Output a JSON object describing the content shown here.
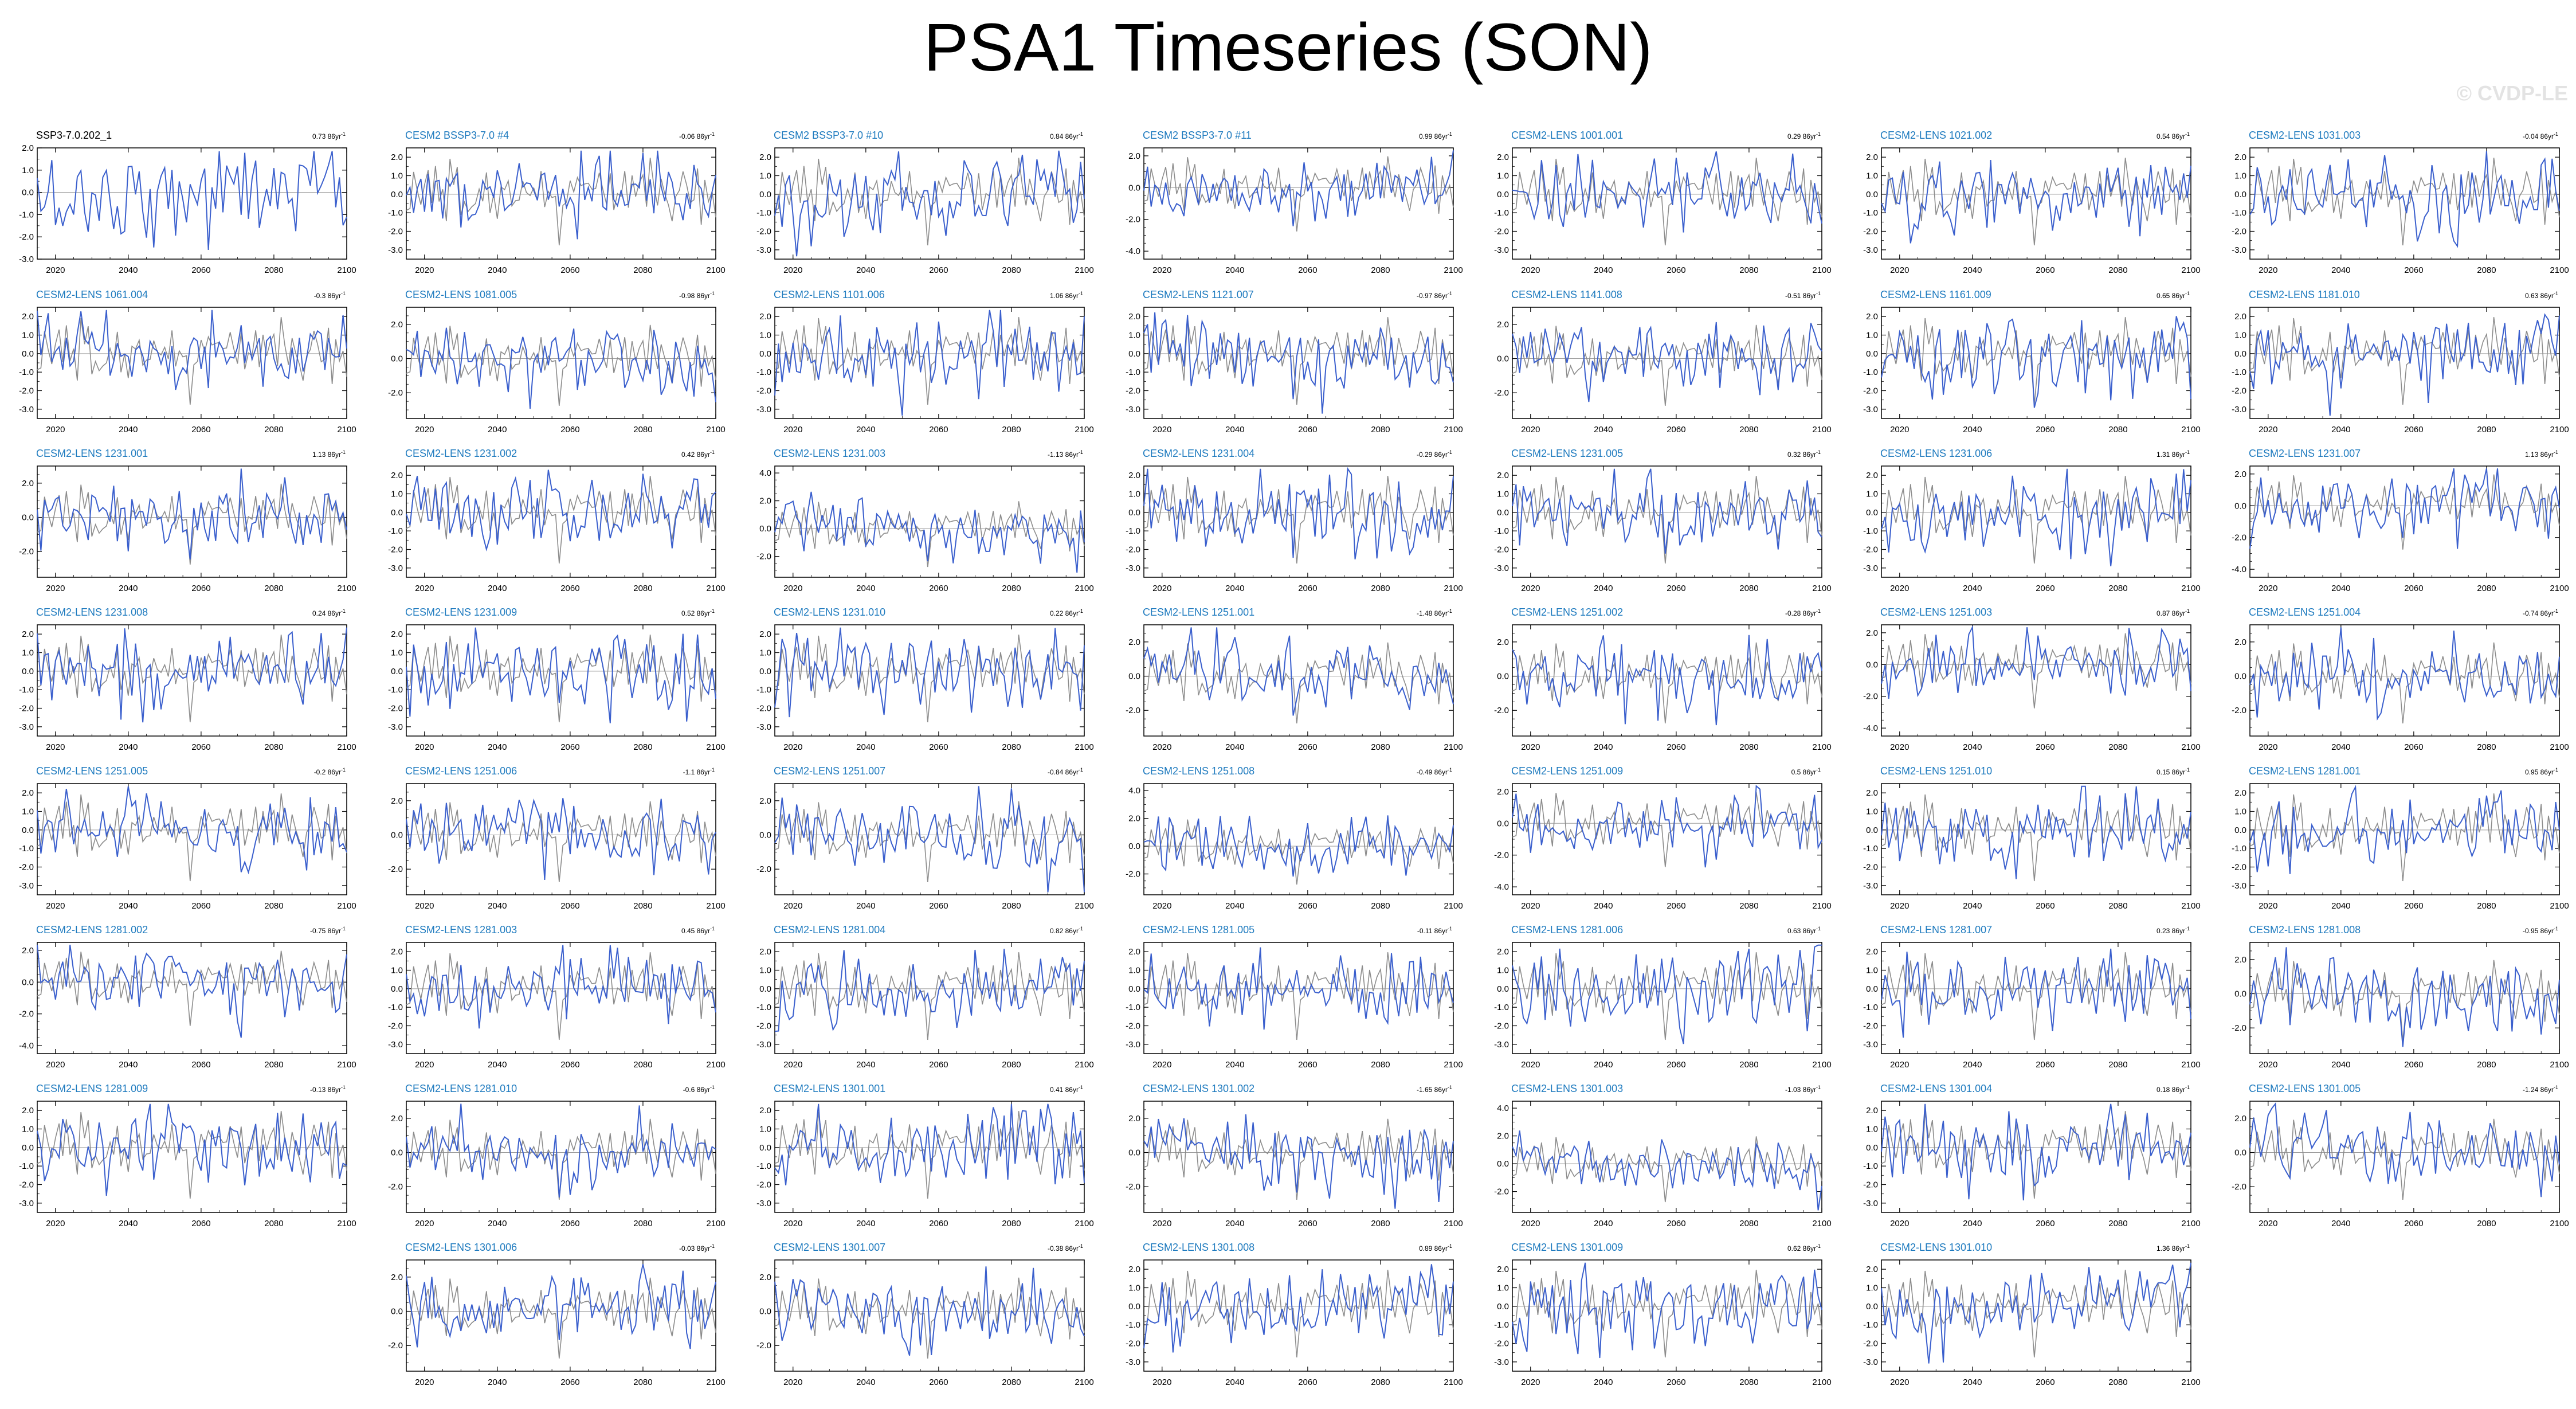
{
  "title": "PSA1 Timeseries (SON)",
  "watermark": "© CVDP-LE",
  "colors": {
    "member_line": "#3a5fcd",
    "obs_line": "#8c8c8c",
    "member_title": "#1f7bbf",
    "obs_title": "#000000",
    "zero_line": "#9a9a9a"
  },
  "chart_data": {
    "type": "line",
    "x_range": [
      2015,
      2100
    ],
    "x_ticks": [
      2020,
      2040,
      2060,
      2080,
      2100
    ],
    "trend_unit": "86yr",
    "trend_unit_exp": "-1",
    "series_note": "Each panel: ensemble member (blue) with observational reference (gray), standardized PSA1 index",
    "panels": [
      {
        "name": "SSP3-7.0.202_1",
        "trend": "0.73",
        "row": 0,
        "col": 0,
        "obs": true,
        "ylim": [
          -3.0,
          2.0
        ],
        "yticks": [
          -3.0,
          -2.0,
          -1.0,
          0.0,
          1.0,
          2.0
        ]
      },
      {
        "name": "CESM2 BSSP3-7.0 #4",
        "trend": "-0.06",
        "row": 0,
        "col": 1,
        "ylim": [
          -3.5,
          2.5
        ],
        "yticks": [
          -3.0,
          -2.0,
          -1.0,
          0.0,
          1.0,
          2.0
        ]
      },
      {
        "name": "CESM2 BSSP3-7.0 #10",
        "trend": "0.84",
        "row": 0,
        "col": 2,
        "ylim": [
          -3.5,
          2.5
        ],
        "yticks": [
          -3.0,
          -2.0,
          -1.0,
          0.0,
          1.0,
          2.0
        ]
      },
      {
        "name": "CESM2 BSSP3-7.0 #11",
        "trend": "0.99",
        "row": 0,
        "col": 3,
        "ylim": [
          -4.5,
          2.5
        ],
        "yticks": [
          -4.0,
          -2.0,
          0.0,
          2.0
        ]
      },
      {
        "name": "CESM2-LENS 1001.001",
        "trend": "0.29",
        "row": 0,
        "col": 4,
        "ylim": [
          -3.5,
          2.5
        ],
        "yticks": [
          -3.0,
          -2.0,
          -1.0,
          0.0,
          1.0,
          2.0
        ]
      },
      {
        "name": "CESM2-LENS 1021.002",
        "trend": "0.54",
        "row": 0,
        "col": 5,
        "ylim": [
          -3.5,
          2.5
        ],
        "yticks": [
          -3.0,
          -2.0,
          -1.0,
          0.0,
          1.0,
          2.0
        ]
      },
      {
        "name": "CESM2-LENS 1031.003",
        "trend": "-0.04",
        "row": 0,
        "col": 6,
        "ylim": [
          -3.5,
          2.5
        ],
        "yticks": [
          -3.0,
          -2.0,
          -1.0,
          0.0,
          1.0,
          2.0
        ]
      },
      {
        "name": "CESM2-LENS 1061.004",
        "trend": "-0.3",
        "row": 1,
        "col": 0,
        "ylim": [
          -3.5,
          2.5
        ],
        "yticks": [
          -3.0,
          -2.0,
          -1.0,
          0.0,
          1.0,
          2.0
        ]
      },
      {
        "name": "CESM2-LENS 1081.005",
        "trend": "-0.98",
        "row": 1,
        "col": 1,
        "ylim": [
          -3.5,
          3.0
        ],
        "yticks": [
          -2.0,
          0.0,
          2.0
        ]
      },
      {
        "name": "CESM2-LENS 1101.006",
        "trend": "1.06",
        "row": 1,
        "col": 2,
        "ylim": [
          -3.5,
          2.5
        ],
        "yticks": [
          -3.0,
          -2.0,
          -1.0,
          0.0,
          1.0,
          2.0
        ]
      },
      {
        "name": "CESM2-LENS 1121.007",
        "trend": "-0.97",
        "row": 1,
        "col": 3,
        "ylim": [
          -3.5,
          2.5
        ],
        "yticks": [
          -3.0,
          -2.0,
          -1.0,
          0.0,
          1.0,
          2.0
        ]
      },
      {
        "name": "CESM2-LENS 1141.008",
        "trend": "-0.51",
        "row": 1,
        "col": 4,
        "ylim": [
          -3.5,
          3.0
        ],
        "yticks": [
          -2.0,
          0.0,
          2.0
        ]
      },
      {
        "name": "CESM2-LENS 1161.009",
        "trend": "0.65",
        "row": 1,
        "col": 5,
        "ylim": [
          -3.5,
          2.5
        ],
        "yticks": [
          -3.0,
          -2.0,
          -1.0,
          0.0,
          1.0,
          2.0
        ]
      },
      {
        "name": "CESM2-LENS 1181.010",
        "trend": "0.63",
        "row": 1,
        "col": 6,
        "ylim": [
          -3.5,
          2.5
        ],
        "yticks": [
          -3.0,
          -2.0,
          -1.0,
          0.0,
          1.0,
          2.0
        ]
      },
      {
        "name": "CESM2-LENS 1231.001",
        "trend": "1.13",
        "row": 2,
        "col": 0,
        "ylim": [
          -3.5,
          3.0
        ],
        "yticks": [
          -2.0,
          0.0,
          2.0
        ]
      },
      {
        "name": "CESM2-LENS 1231.002",
        "trend": "0.42",
        "row": 2,
        "col": 1,
        "ylim": [
          -3.5,
          2.5
        ],
        "yticks": [
          -3.0,
          -2.0,
          -1.0,
          0.0,
          1.0,
          2.0
        ]
      },
      {
        "name": "CESM2-LENS 1231.003",
        "trend": "-1.13",
        "row": 2,
        "col": 2,
        "ylim": [
          -3.5,
          4.5
        ],
        "yticks": [
          -2.0,
          0.0,
          2.0,
          4.0
        ]
      },
      {
        "name": "CESM2-LENS 1231.004",
        "trend": "-0.29",
        "row": 2,
        "col": 3,
        "ylim": [
          -3.5,
          2.5
        ],
        "yticks": [
          -3.0,
          -2.0,
          -1.0,
          0.0,
          1.0,
          2.0
        ]
      },
      {
        "name": "CESM2-LENS 1231.005",
        "trend": "0.32",
        "row": 2,
        "col": 4,
        "ylim": [
          -3.5,
          2.5
        ],
        "yticks": [
          -3.0,
          -2.0,
          -1.0,
          0.0,
          1.0,
          2.0
        ]
      },
      {
        "name": "CESM2-LENS 1231.006",
        "trend": "1.31",
        "row": 2,
        "col": 5,
        "ylim": [
          -3.5,
          2.5
        ],
        "yticks": [
          -3.0,
          -2.0,
          -1.0,
          0.0,
          1.0,
          2.0
        ]
      },
      {
        "name": "CESM2-LENS 1231.007",
        "trend": "1.13",
        "row": 2,
        "col": 6,
        "ylim": [
          -4.5,
          2.5
        ],
        "yticks": [
          -4.0,
          -2.0,
          0.0,
          2.0
        ]
      },
      {
        "name": "CESM2-LENS 1231.008",
        "trend": "0.24",
        "row": 3,
        "col": 0,
        "ylim": [
          -3.5,
          2.5
        ],
        "yticks": [
          -3.0,
          -2.0,
          -1.0,
          0.0,
          1.0,
          2.0
        ]
      },
      {
        "name": "CESM2-LENS 1231.009",
        "trend": "0.52",
        "row": 3,
        "col": 1,
        "ylim": [
          -3.5,
          2.5
        ],
        "yticks": [
          -3.0,
          -2.0,
          -1.0,
          0.0,
          1.0,
          2.0
        ]
      },
      {
        "name": "CESM2-LENS 1231.010",
        "trend": "0.22",
        "row": 3,
        "col": 2,
        "ylim": [
          -3.5,
          2.5
        ],
        "yticks": [
          -3.0,
          -2.0,
          -1.0,
          0.0,
          1.0,
          2.0
        ]
      },
      {
        "name": "CESM2-LENS 1251.001",
        "trend": "-1.48",
        "row": 3,
        "col": 3,
        "ylim": [
          -3.5,
          3.0
        ],
        "yticks": [
          -2.0,
          0.0,
          2.0
        ]
      },
      {
        "name": "CESM2-LENS 1251.002",
        "trend": "-0.28",
        "row": 3,
        "col": 4,
        "ylim": [
          -3.5,
          3.0
        ],
        "yticks": [
          -2.0,
          0.0,
          2.0
        ]
      },
      {
        "name": "CESM2-LENS 1251.003",
        "trend": "0.87",
        "row": 3,
        "col": 5,
        "ylim": [
          -4.5,
          2.5
        ],
        "yticks": [
          -4.0,
          -2.0,
          0.0,
          2.0
        ]
      },
      {
        "name": "CESM2-LENS 1251.004",
        "trend": "-0.74",
        "row": 3,
        "col": 6,
        "ylim": [
          -3.5,
          3.0
        ],
        "yticks": [
          -2.0,
          0.0,
          2.0
        ]
      },
      {
        "name": "CESM2-LENS 1251.005",
        "trend": "-0.2",
        "row": 4,
        "col": 0,
        "ylim": [
          -3.5,
          2.5
        ],
        "yticks": [
          -3.0,
          -2.0,
          -1.0,
          0.0,
          1.0,
          2.0
        ]
      },
      {
        "name": "CESM2-LENS 1251.006",
        "trend": "-1.1",
        "row": 4,
        "col": 1,
        "ylim": [
          -3.5,
          3.0
        ],
        "yticks": [
          -2.0,
          0.0,
          2.0
        ]
      },
      {
        "name": "CESM2-LENS 1251.007",
        "trend": "-0.84",
        "row": 4,
        "col": 2,
        "ylim": [
          -3.5,
          3.0
        ],
        "yticks": [
          -2.0,
          0.0,
          2.0
        ]
      },
      {
        "name": "CESM2-LENS 1251.008",
        "trend": "-0.49",
        "row": 4,
        "col": 3,
        "ylim": [
          -3.5,
          4.5
        ],
        "yticks": [
          -2.0,
          0.0,
          2.0,
          4.0
        ]
      },
      {
        "name": "CESM2-LENS 1251.009",
        "trend": "0.5",
        "row": 4,
        "col": 4,
        "ylim": [
          -4.5,
          2.5
        ],
        "yticks": [
          -4.0,
          -2.0,
          0.0,
          2.0
        ]
      },
      {
        "name": "CESM2-LENS 1251.010",
        "trend": "0.15",
        "row": 4,
        "col": 5,
        "ylim": [
          -3.5,
          2.5
        ],
        "yticks": [
          -3.0,
          -2.0,
          -1.0,
          0.0,
          1.0,
          2.0
        ]
      },
      {
        "name": "CESM2-LENS 1281.001",
        "trend": "0.95",
        "row": 4,
        "col": 6,
        "ylim": [
          -3.5,
          2.5
        ],
        "yticks": [
          -3.0,
          -2.0,
          -1.0,
          0.0,
          1.0,
          2.0
        ]
      },
      {
        "name": "CESM2-LENS 1281.002",
        "trend": "-0.75",
        "row": 5,
        "col": 0,
        "ylim": [
          -4.5,
          2.5
        ],
        "yticks": [
          -4.0,
          -2.0,
          0.0,
          2.0
        ]
      },
      {
        "name": "CESM2-LENS 1281.003",
        "trend": "0.45",
        "row": 5,
        "col": 1,
        "ylim": [
          -3.5,
          2.5
        ],
        "yticks": [
          -3.0,
          -2.0,
          -1.0,
          0.0,
          1.0,
          2.0
        ]
      },
      {
        "name": "CESM2-LENS 1281.004",
        "trend": "0.82",
        "row": 5,
        "col": 2,
        "ylim": [
          -3.5,
          2.5
        ],
        "yticks": [
          -3.0,
          -2.0,
          -1.0,
          0.0,
          1.0,
          2.0
        ]
      },
      {
        "name": "CESM2-LENS 1281.005",
        "trend": "-0.11",
        "row": 5,
        "col": 3,
        "ylim": [
          -3.5,
          2.5
        ],
        "yticks": [
          -3.0,
          -2.0,
          -1.0,
          0.0,
          1.0,
          2.0
        ]
      },
      {
        "name": "CESM2-LENS 1281.006",
        "trend": "0.63",
        "row": 5,
        "col": 4,
        "ylim": [
          -3.5,
          2.5
        ],
        "yticks": [
          -3.0,
          -2.0,
          -1.0,
          0.0,
          1.0,
          2.0
        ]
      },
      {
        "name": "CESM2-LENS 1281.007",
        "trend": "0.23",
        "row": 5,
        "col": 5,
        "ylim": [
          -3.5,
          2.5
        ],
        "yticks": [
          -3.0,
          -2.0,
          -1.0,
          0.0,
          1.0,
          2.0
        ]
      },
      {
        "name": "CESM2-LENS 1281.008",
        "trend": "-0.95",
        "row": 5,
        "col": 6,
        "ylim": [
          -3.5,
          3.0
        ],
        "yticks": [
          -2.0,
          0.0,
          2.0
        ]
      },
      {
        "name": "CESM2-LENS 1281.009",
        "trend": "-0.13",
        "row": 6,
        "col": 0,
        "ylim": [
          -3.5,
          2.5
        ],
        "yticks": [
          -3.0,
          -2.0,
          -1.0,
          0.0,
          1.0,
          2.0
        ]
      },
      {
        "name": "CESM2-LENS 1281.010",
        "trend": "-0.6",
        "row": 6,
        "col": 1,
        "ylim": [
          -3.5,
          3.0
        ],
        "yticks": [
          -2.0,
          0.0,
          2.0
        ]
      },
      {
        "name": "CESM2-LENS 1301.001",
        "trend": "0.41",
        "row": 6,
        "col": 2,
        "ylim": [
          -3.5,
          2.5
        ],
        "yticks": [
          -3.0,
          -2.0,
          -1.0,
          0.0,
          1.0,
          2.0
        ]
      },
      {
        "name": "CESM2-LENS 1301.002",
        "trend": "-1.65",
        "row": 6,
        "col": 3,
        "ylim": [
          -3.5,
          3.0
        ],
        "yticks": [
          -2.0,
          0.0,
          2.0
        ]
      },
      {
        "name": "CESM2-LENS 1301.003",
        "trend": "-1.03",
        "row": 6,
        "col": 4,
        "ylim": [
          -3.5,
          4.5
        ],
        "yticks": [
          -2.0,
          0.0,
          2.0,
          4.0
        ]
      },
      {
        "name": "CESM2-LENS 1301.004",
        "trend": "0.18",
        "row": 6,
        "col": 5,
        "ylim": [
          -3.5,
          2.5
        ],
        "yticks": [
          -3.0,
          -2.0,
          -1.0,
          0.0,
          1.0,
          2.0
        ]
      },
      {
        "name": "CESM2-LENS 1301.005",
        "trend": "-1.24",
        "row": 6,
        "col": 6,
        "ylim": [
          -3.5,
          3.0
        ],
        "yticks": [
          -2.0,
          0.0,
          2.0
        ]
      },
      {
        "name": "CESM2-LENS 1301.006",
        "trend": "-0.03",
        "row": 7,
        "col": 1,
        "ylim": [
          -3.5,
          3.0
        ],
        "yticks": [
          -2.0,
          0.0,
          2.0
        ]
      },
      {
        "name": "CESM2-LENS 1301.007",
        "trend": "-0.38",
        "row": 7,
        "col": 2,
        "ylim": [
          -3.5,
          3.0
        ],
        "yticks": [
          -2.0,
          0.0,
          2.0
        ]
      },
      {
        "name": "CESM2-LENS 1301.008",
        "trend": "0.89",
        "row": 7,
        "col": 3,
        "ylim": [
          -3.5,
          2.5
        ],
        "yticks": [
          -3.0,
          -2.0,
          -1.0,
          0.0,
          1.0,
          2.0
        ]
      },
      {
        "name": "CESM2-LENS 1301.009",
        "trend": "0.62",
        "row": 7,
        "col": 4,
        "ylim": [
          -3.5,
          2.5
        ],
        "yticks": [
          -3.0,
          -2.0,
          -1.0,
          0.0,
          1.0,
          2.0
        ]
      },
      {
        "name": "CESM2-LENS 1301.010",
        "trend": "1.36",
        "row": 7,
        "col": 5,
        "ylim": [
          -3.5,
          2.5
        ],
        "yticks": [
          -3.0,
          -2.0,
          -1.0,
          0.0,
          1.0,
          2.0
        ]
      }
    ]
  }
}
